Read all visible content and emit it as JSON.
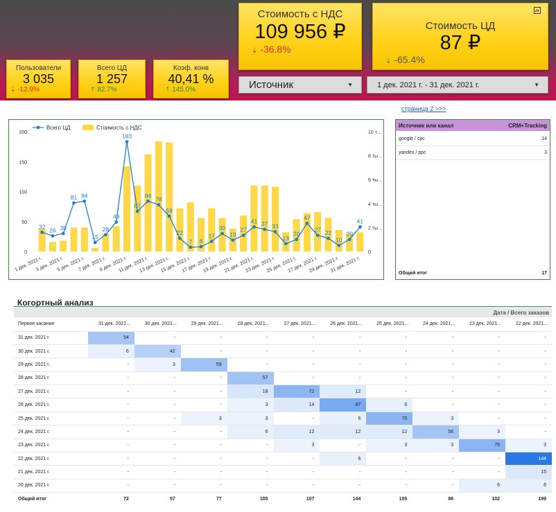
{
  "kpis": {
    "users": {
      "label": "Пользователи",
      "value": "3 035",
      "delta": "-12.9%",
      "dir": "down"
    },
    "total_cd": {
      "label": "Всего ЦД",
      "value": "1 257",
      "delta": "82.7%",
      "dir": "up"
    },
    "conv": {
      "label": "Коэф. конв",
      "value": "40,41 %",
      "delta": "145.0%",
      "dir": "up"
    },
    "cost_vat": {
      "label": "Стоимость с НДС",
      "value": "109 956 ₽",
      "delta": "-36.8%",
      "dir": "down"
    },
    "cost_cd": {
      "label": "Стоимость ЦД",
      "value": "87 ₽",
      "delta": "-65.4%",
      "dir": "down"
    }
  },
  "filters": {
    "source": "Источник",
    "date_range": "1 дек. 2021 г. - 31 дек. 2021 г."
  },
  "page_link": "страница 2 >>>",
  "colors": {
    "bar": "#ffd84a",
    "line": "#1f7fd1",
    "source_header": "#c993dc",
    "panel_border": "#3c8a3c"
  },
  "chart_data": {
    "type": "bar",
    "series": [
      {
        "name": "Всего ЦД",
        "type": "line",
        "axis": "left",
        "values": [
          32,
          26,
          30,
          81,
          84,
          15,
          28,
          49,
          183,
          67,
          84,
          78,
          59,
          22,
          7,
          8,
          17,
          30,
          19,
          27,
          41,
          37,
          33,
          13,
          20,
          47,
          27,
          22,
          10,
          20,
          41
        ]
      },
      {
        "name": "Стоимость с НДС",
        "type": "bar",
        "axis": "right",
        "values": [
          1900,
          800,
          900,
          2000,
          2000,
          300,
          1500,
          2100,
          7100,
          5500,
          8100,
          9200,
          9100,
          3600,
          4100,
          2800,
          3600,
          2800,
          1900,
          3000,
          5500,
          5500,
          5400,
          1600,
          2700,
          3200,
          3300,
          2800,
          1800,
          1500,
          1600
        ]
      }
    ],
    "x_tick_labels": [
      "1 дек. 2021 г.",
      "3 дек. 2021 г.",
      "5 дек. 2021 г.",
      "7 дек. 2021 г.",
      "9 дек. 2021 г.",
      "11 дек. 2021 г.",
      "13 дек. 2021 г.",
      "15 дек. 2021 г.",
      "17 дек. 2021 г.",
      "19 дек. 2021 г.",
      "21 дек. 2021 г.",
      "23 дек. 2021 г.",
      "25 дек. 2021 г.",
      "27 дек. 2021 г.",
      "29 дек. 2021 г.",
      "31 дек. 2021 г."
    ],
    "y_left_ticks": [
      "0",
      "50",
      "100",
      "150",
      "200"
    ],
    "y_right_ticks": [
      "0",
      "2 ты…",
      "4 ты…",
      "6 ты…",
      "8 ты…",
      "10 т…"
    ],
    "ylim_left": [
      0,
      200
    ],
    "ylim_right": [
      0,
      10000
    ],
    "grid": false,
    "legend_position": "top-left"
  },
  "source_table": {
    "col1": "Источник или канал",
    "col2": "CRM+Tracking",
    "rows": [
      {
        "name": "google / cpc",
        "value": "14"
      },
      {
        "name": "yandex / ppc",
        "value": "3"
      }
    ],
    "total_label": "Общий итог",
    "total_value": "17"
  },
  "cohort": {
    "title": "Когортный анализ",
    "header_right": "Дата / Всего заказов",
    "first_col": "Первое касание",
    "columns": [
      "31 дек. 2021...",
      "30 дек. 2021...",
      "29 дек. 2021...",
      "28 дек. 2021...",
      "27 дек. 2021...",
      "26 дек. 2021...",
      "25 дек. 2021...",
      "24 дек. 2021...",
      "23 дек. 2021...",
      "22 дек. 2021..."
    ],
    "rows": [
      {
        "label": "31 дек. 2021 г.",
        "cells": [
          "54",
          "-",
          "-",
          "-",
          "-",
          "-",
          "-",
          "-",
          "-",
          "-"
        ]
      },
      {
        "label": "30 дек. 2021 г.",
        "cells": [
          "6",
          "42",
          "-",
          "-",
          "-",
          "-",
          "-",
          "-",
          "-",
          "-"
        ]
      },
      {
        "label": "29 дек. 2021 г.",
        "cells": [
          "-",
          "3",
          "59",
          "-",
          "-",
          "-",
          "-",
          "-",
          "-",
          "-"
        ]
      },
      {
        "label": "28 дек. 2021 г.",
        "cells": [
          "-",
          "-",
          "-",
          "57",
          "-",
          "-",
          "-",
          "-",
          "-",
          "-"
        ]
      },
      {
        "label": "27 дек. 2021 г.",
        "cells": [
          "-",
          "-",
          "-",
          "18",
          "72",
          "12",
          "-",
          "-",
          "-",
          "-"
        ]
      },
      {
        "label": "26 дек. 2021 г.",
        "cells": [
          "-",
          "-",
          "-",
          "3",
          "14",
          "87",
          "6",
          "-",
          "-",
          "-"
        ]
      },
      {
        "label": "25 дек. 2021 г.",
        "cells": [
          "-",
          "-",
          "3",
          "3",
          "-",
          "6",
          "75",
          "3",
          "-",
          "-"
        ]
      },
      {
        "label": "24 дек. 2021 г.",
        "cells": [
          "-",
          "-",
          "-",
          "6",
          "12",
          "12",
          "12",
          "56",
          "3",
          "-"
        ]
      },
      {
        "label": "23 дек. 2021 г.",
        "cells": [
          "-",
          "-",
          "-",
          "-",
          "3",
          "-",
          "3",
          "3",
          "75",
          "3"
        ]
      },
      {
        "label": "22 дек. 2021 г.",
        "cells": [
          "-",
          "-",
          "-",
          "-",
          "-",
          "6",
          "-",
          "-",
          "-",
          "144"
        ]
      },
      {
        "label": "21 дек. 2021 г.",
        "cells": [
          "-",
          "-",
          "-",
          "-",
          "-",
          "-",
          "-",
          "-",
          "-",
          "15"
        ]
      },
      {
        "label": "20 дек. 2021 г.",
        "cells": [
          "-",
          "-",
          "-",
          "-",
          "-",
          "-",
          "-",
          "-",
          "6",
          "6"
        ]
      }
    ],
    "total_label": "Общий итог",
    "totals": [
      "72",
      "57",
      "77",
      "105",
      "107",
      "144",
      "105",
      "86",
      "102",
      "199"
    ]
  }
}
